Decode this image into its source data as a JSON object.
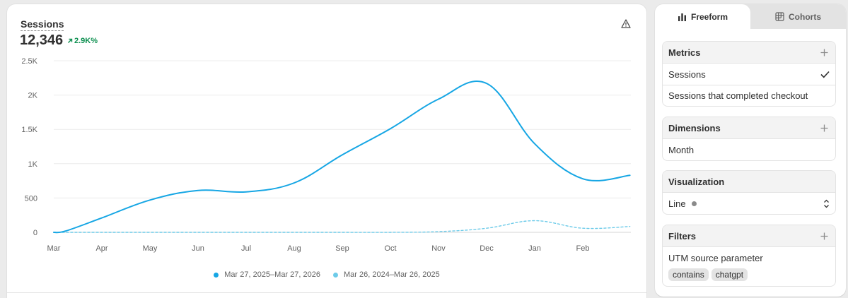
{
  "metric": {
    "title": "Sessions",
    "value": "12,346",
    "change": "2.9K%",
    "change_color": "#0c8f4f",
    "warning_icon": "warning-triangle-icon"
  },
  "legend": {
    "current": "Mar 27, 2025–Mar 27, 2026",
    "previous": "Mar 26, 2024–Mar 26, 2025"
  },
  "chart_data": {
    "type": "line",
    "title": "Sessions",
    "xlabel": "",
    "ylabel": "",
    "categories": [
      "Mar",
      "Apr",
      "May",
      "Jun",
      "Jul",
      "Aug",
      "Sep",
      "Oct",
      "Nov",
      "Dec",
      "Jan",
      "Feb"
    ],
    "y_ticks": [
      "0",
      "500",
      "1K",
      "1.5K",
      "2K",
      "2.5K"
    ],
    "ylim": [
      0,
      2500
    ],
    "grid": true,
    "series": [
      {
        "name": "Mar 27, 2025–Mar 27, 2026",
        "color": "#16a6e4",
        "style": "solid",
        "x": [
          0,
          0.25,
          1,
          2,
          3,
          4,
          5,
          6,
          7,
          8,
          9,
          10,
          11,
          11.98
        ],
        "values": [
          0,
          20,
          210,
          470,
          610,
          590,
          720,
          1130,
          1510,
          1940,
          2170,
          1290,
          780,
          830
        ]
      },
      {
        "name": "Mar 26, 2024–Mar 26, 2025",
        "color": "#6dcbe9",
        "style": "dashed",
        "x": [
          0,
          1,
          2,
          3,
          4,
          5,
          6,
          7,
          8,
          9,
          10,
          11,
          11.98
        ],
        "values": [
          0,
          0,
          0,
          0,
          0,
          0,
          0,
          0,
          10,
          60,
          170,
          60,
          85
        ]
      }
    ]
  },
  "panel": {
    "tabs": [
      {
        "label": "Freeform",
        "icon": "bar-chart-icon"
      },
      {
        "label": "Cohorts",
        "icon": "grid-icon"
      }
    ],
    "metrics": {
      "header": "Metrics",
      "items": [
        "Sessions",
        "Sessions that completed checkout"
      ]
    },
    "dimensions": {
      "header": "Dimensions",
      "items": [
        "Month"
      ]
    },
    "visualization": {
      "header": "Visualization",
      "value": "Line"
    },
    "filters": {
      "header": "Filters",
      "filter_name": "UTM source parameter",
      "operator": "contains",
      "value": "chatgpt"
    }
  }
}
